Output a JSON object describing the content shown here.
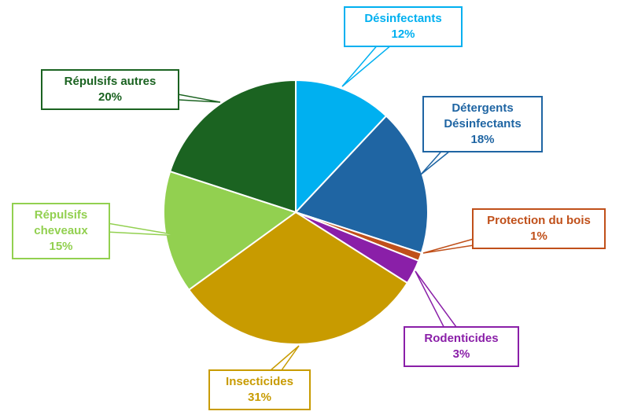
{
  "chart_data": {
    "type": "pie",
    "categories": [
      "Désinfectants",
      "Détergents Désinfectants",
      "Protection du bois",
      "Rodenticides",
      "Insecticides",
      "Répulsifs cheveaux",
      "Répulsifs autres"
    ],
    "values": [
      12,
      18,
      1,
      3,
      31,
      15,
      20
    ],
    "value_labels": [
      "12%",
      "18%",
      "1%",
      "3%",
      "31%",
      "15%",
      "20%"
    ],
    "colors": [
      "#00b0f0",
      "#1f65a3",
      "#c0501a",
      "#8a1fa8",
      "#c89b00",
      "#92d050",
      "#1b6321"
    ]
  }
}
